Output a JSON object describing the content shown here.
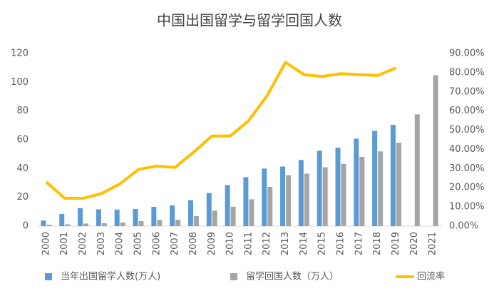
{
  "chart_data": {
    "type": "bar-line",
    "title": "中国出国留学与留学回国人数",
    "categories": [
      "2000",
      "2001",
      "2002",
      "2003",
      "2004",
      "2005",
      "2006",
      "2007",
      "2008",
      "2009",
      "2010",
      "2011",
      "2012",
      "2013",
      "2014",
      "2015",
      "2016",
      "2017",
      "2018",
      "2019",
      "2020",
      "2021"
    ],
    "series": [
      {
        "name": "当年出国留学人数(万人)",
        "color": "#5b9bd5",
        "kind": "bar",
        "values": [
          3.9,
          8.4,
          12.5,
          11.7,
          11.5,
          11.9,
          13.4,
          14.4,
          18,
          23,
          28.5,
          34,
          40,
          41.4,
          46,
          52.4,
          54.5,
          60.8,
          66.2,
          70.4,
          null,
          null
        ]
      },
      {
        "name": "留学回国人数（万人）",
        "color": "#a5a5a5",
        "kind": "bar",
        "values": [
          0.9,
          1.2,
          1.8,
          2,
          2.5,
          3.5,
          4.2,
          4.4,
          6.9,
          10.8,
          13.5,
          18.6,
          27.3,
          35.4,
          36.5,
          40.9,
          43.3,
          48.1,
          51.9,
          58,
          77.7,
          104.9
        ]
      },
      {
        "name": "回流率",
        "color": "#ffc000",
        "kind": "line",
        "axis": "y2",
        "values": [
          23,
          14.5,
          14.5,
          17,
          22,
          29.5,
          31.3,
          30.6,
          38.5,
          47,
          47,
          55,
          68,
          85.4,
          79,
          78,
          79.5,
          79,
          78.5,
          82.5,
          null,
          null
        ]
      }
    ],
    "ylim": [
      0,
      120
    ],
    "yticks": [
      0,
      20,
      40,
      60,
      80,
      100,
      120
    ],
    "y2lim": [
      0,
      90
    ],
    "y2ticks": [
      {
        "value": 0,
        "label": "0.00%"
      },
      {
        "value": 10,
        "label": "10.00%"
      },
      {
        "value": 20,
        "label": "20.00%"
      },
      {
        "value": 30,
        "label": "30.00%"
      },
      {
        "value": 40,
        "label": "40.00%"
      },
      {
        "value": 50,
        "label": "50.00%"
      },
      {
        "value": 60,
        "label": "60.00%"
      },
      {
        "value": 70,
        "label": "70.00%"
      },
      {
        "value": 80,
        "label": "80.00%"
      },
      {
        "value": 90,
        "label": "90.00%"
      }
    ],
    "legend": "bottom"
  }
}
